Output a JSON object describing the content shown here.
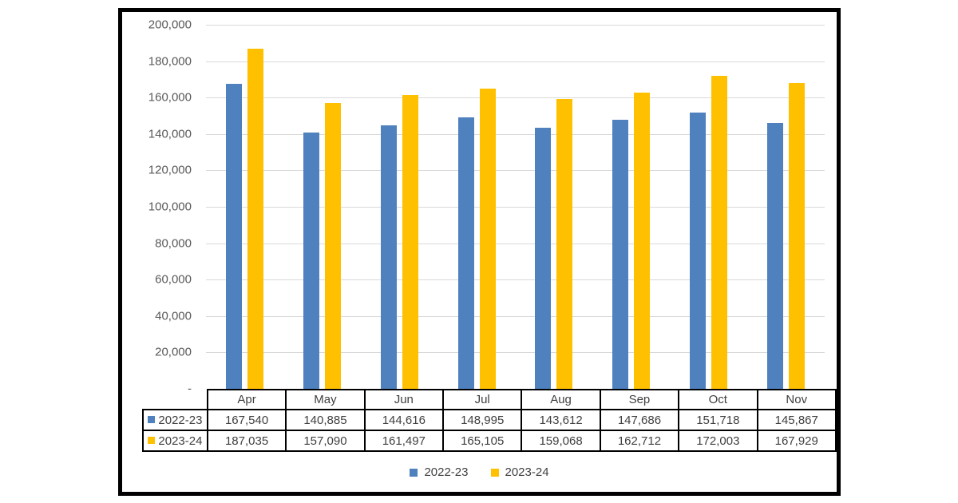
{
  "chart_data": {
    "type": "bar",
    "title": "",
    "categories": [
      "Apr",
      "May",
      "Jun",
      "Jul",
      "Aug",
      "Sep",
      "Oct",
      "Nov"
    ],
    "series": [
      {
        "name": "2022-23",
        "color": "#4E81BD",
        "values": [
          167540,
          140885,
          144616,
          148995,
          143612,
          147686,
          151718,
          145867
        ]
      },
      {
        "name": "2023-24",
        "color": "#FFC000",
        "values": [
          187035,
          157090,
          161497,
          165105,
          159068,
          162712,
          172003,
          167929
        ]
      }
    ],
    "xlabel": "",
    "ylabel": "",
    "ylim": [
      0,
      200000
    ],
    "ytick_step": 20000,
    "ytick_labels": [
      "-",
      "20,000",
      "40,000",
      "60,000",
      "80,000",
      "100,000",
      "120,000",
      "140,000",
      "160,000",
      "180,000",
      "200,000"
    ],
    "grid": true,
    "legend_position": "bottom"
  },
  "table": {
    "column_headers": [
      "Apr",
      "May",
      "Jun",
      "Jul",
      "Aug",
      "Sep",
      "Oct",
      "Nov"
    ],
    "rows": [
      {
        "label": "2022-23",
        "key_color": "#4E81BD",
        "values": [
          "167,540",
          "140,885",
          "144,616",
          "148,995",
          "143,612",
          "147,686",
          "151,718",
          "145,867"
        ]
      },
      {
        "label": "2023-24",
        "key_color": "#FFC000",
        "values": [
          "187,035",
          "157,090",
          "161,497",
          "165,105",
          "159,068",
          "162,712",
          "172,003",
          "167,929"
        ]
      }
    ]
  },
  "legend": {
    "items": [
      {
        "label": "2022-23",
        "color": "#4E81BD"
      },
      {
        "label": "2023-24",
        "color": "#FFC000"
      }
    ]
  },
  "colors": {
    "series_blue": "#4E81BD",
    "series_yellow": "#FFC000",
    "gridline": "#D9D9D9",
    "axis_text": "#595959",
    "table_text": "#3F3F3F",
    "table_border": "#000000",
    "frame_border": "#000000",
    "background": "#FFFFFF"
  }
}
